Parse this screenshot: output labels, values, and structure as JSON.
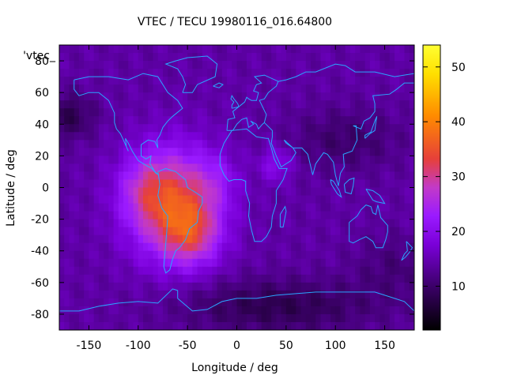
{
  "chart_data": {
    "type": "heatmap",
    "title": "VTEC / TECU 19980116_016.64800",
    "xlabel": "Longitude / deg",
    "ylabel": "Latitude / deg",
    "xlim": [
      -180,
      180
    ],
    "ylim": [
      -90,
      90
    ],
    "x_ticks": [
      "-150",
      "-100",
      "-50",
      "0",
      "50",
      "100",
      "150"
    ],
    "y_ticks": [
      "80",
      "60",
      "40",
      "20",
      "0",
      "-20",
      "-40",
      "-60",
      "-80"
    ],
    "colorbar": {
      "range": [
        2,
        54
      ],
      "ticks": [
        "10",
        "20",
        "30",
        "40",
        "50"
      ],
      "palette": [
        "#000000",
        "#3a0066",
        "#7a00d8",
        "#9a1aff",
        "#c23ac8",
        "#e6403a",
        "#ff8a00",
        "#ffe000",
        "#ffff33"
      ]
    },
    "legend_label": "'vtec_",
    "coastline_color": "#2aa6ff",
    "background_level": 14,
    "peak": {
      "lon": -65,
      "lat": -10,
      "value": 45
    }
  }
}
